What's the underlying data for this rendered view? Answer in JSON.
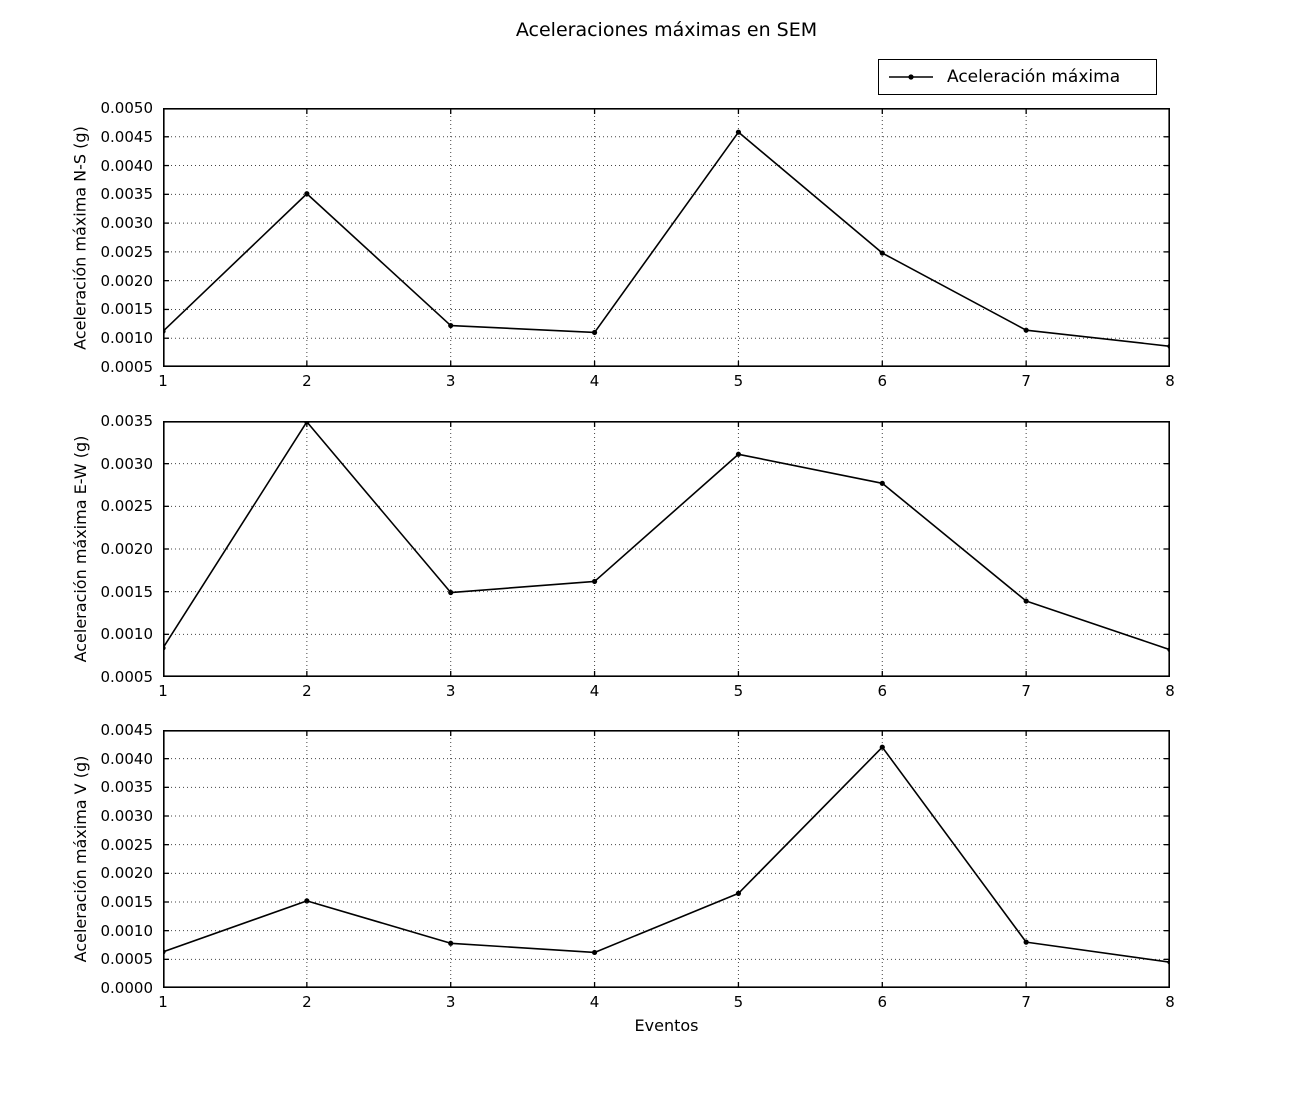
{
  "figure": {
    "title": "Aceleraciones máximas en SEM",
    "xlabel": "Eventos",
    "background_color": "#ffffff",
    "text_color": "#000000"
  },
  "legend": {
    "label": "Aceleración máxima",
    "marker": "dot-on-line",
    "position": "upper-right-above-first-subplot",
    "border_color": "#000000"
  },
  "chart_data": [
    {
      "type": "line",
      "series_name": "Aceleración máxima",
      "ylabel": "Aceleración máxima N-S (g)",
      "xlabel": "",
      "x": [
        1,
        2,
        3,
        4,
        5,
        6,
        7,
        8
      ],
      "values": [
        0.00112,
        0.00351,
        0.00122,
        0.0011,
        0.00458,
        0.00248,
        0.00114,
        0.00086
      ],
      "xlim": [
        1,
        8
      ],
      "ylim": [
        0.0005,
        0.005
      ],
      "ytick_step": 0.0005,
      "xticks": [
        1,
        2,
        3,
        4,
        5,
        6,
        7,
        8
      ],
      "grid": true,
      "grid_style": "dotted",
      "line_color": "#000000",
      "marker": "point"
    },
    {
      "type": "line",
      "series_name": "Aceleración máxima",
      "ylabel": "Aceleración máxima E-W (g)",
      "xlabel": "",
      "x": [
        1,
        2,
        3,
        4,
        5,
        6,
        7,
        8
      ],
      "values": [
        0.00084,
        0.00349,
        0.00149,
        0.00162,
        0.00311,
        0.00277,
        0.00139,
        0.00082
      ],
      "xlim": [
        1,
        8
      ],
      "ylim": [
        0.0005,
        0.0035
      ],
      "ytick_step": 0.0005,
      "xticks": [
        1,
        2,
        3,
        4,
        5,
        6,
        7,
        8
      ],
      "grid": true,
      "grid_style": "dotted",
      "line_color": "#000000",
      "marker": "point"
    },
    {
      "type": "line",
      "series_name": "Aceleración máxima",
      "ylabel": "Aceleración máxima V (g)",
      "xlabel": "Eventos",
      "x": [
        1,
        2,
        3,
        4,
        5,
        6,
        7,
        8
      ],
      "values": [
        0.00063,
        0.00152,
        0.00078,
        0.00062,
        0.00165,
        0.0042,
        0.0008,
        0.00045
      ],
      "xlim": [
        1,
        8
      ],
      "ylim": [
        0.0,
        0.0045
      ],
      "ytick_step": 0.0005,
      "xticks": [
        1,
        2,
        3,
        4,
        5,
        6,
        7,
        8
      ],
      "grid": true,
      "grid_style": "dotted",
      "line_color": "#000000",
      "marker": "point"
    }
  ]
}
